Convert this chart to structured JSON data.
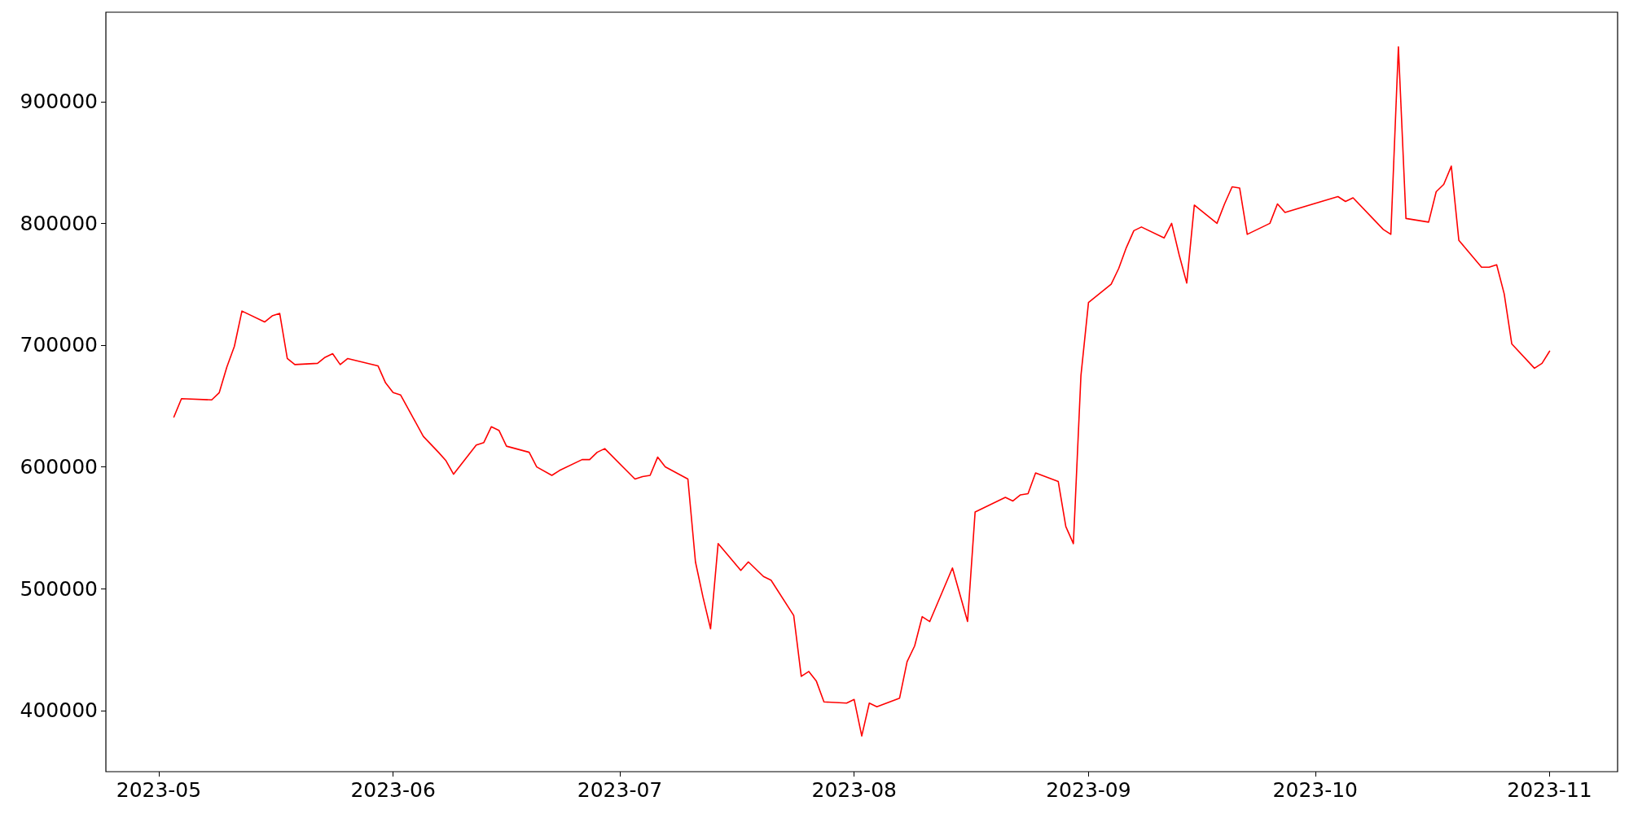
{
  "chart_data": {
    "type": "line",
    "xlim": [
      "2023-04-24",
      "2023-11-10"
    ],
    "ylim": [
      349700,
      973400
    ],
    "xticks": [
      "2023-05",
      "2023-06",
      "2023-07",
      "2023-08",
      "2023-09",
      "2023-10",
      "2023-11"
    ],
    "yticks": [
      400000,
      500000,
      600000,
      700000,
      800000,
      900000
    ],
    "grid": false,
    "marker": "none",
    "line_style": "solid",
    "series": [
      {
        "color": "#ff0000",
        "x": [
          "2023-05-03",
          "2023-05-04",
          "2023-05-08",
          "2023-05-09",
          "2023-05-10",
          "2023-05-11",
          "2023-05-12",
          "2023-05-15",
          "2023-05-16",
          "2023-05-17",
          "2023-05-18",
          "2023-05-19",
          "2023-05-22",
          "2023-05-23",
          "2023-05-24",
          "2023-05-25",
          "2023-05-26",
          "2023-05-30",
          "2023-05-31",
          "2023-06-01",
          "2023-06-02",
          "2023-06-05",
          "2023-06-07",
          "2023-06-08",
          "2023-06-09",
          "2023-06-12",
          "2023-06-13",
          "2023-06-14",
          "2023-06-15",
          "2023-06-16",
          "2023-06-19",
          "2023-06-20",
          "2023-06-22",
          "2023-06-23",
          "2023-06-26",
          "2023-06-27",
          "2023-06-28",
          "2023-06-29",
          "2023-07-03",
          "2023-07-04",
          "2023-07-05",
          "2023-07-06",
          "2023-07-07",
          "2023-07-10",
          "2023-07-11",
          "2023-07-12",
          "2023-07-13",
          "2023-07-14",
          "2023-07-17",
          "2023-07-18",
          "2023-07-19",
          "2023-07-20",
          "2023-07-21",
          "2023-07-24",
          "2023-07-25",
          "2023-07-26",
          "2023-07-27",
          "2023-07-28",
          "2023-07-31",
          "2023-08-01",
          "2023-08-02",
          "2023-08-03",
          "2023-08-04",
          "2023-08-07",
          "2023-08-08",
          "2023-08-09",
          "2023-08-10",
          "2023-08-11",
          "2023-08-14",
          "2023-08-16",
          "2023-08-17",
          "2023-08-18",
          "2023-08-21",
          "2023-08-22",
          "2023-08-23",
          "2023-08-24",
          "2023-08-25",
          "2023-08-28",
          "2023-08-29",
          "2023-08-30",
          "2023-08-31",
          "2023-09-01",
          "2023-09-04",
          "2023-09-05",
          "2023-09-06",
          "2023-09-07",
          "2023-09-08",
          "2023-09-11",
          "2023-09-12",
          "2023-09-13",
          "2023-09-14",
          "2023-09-15",
          "2023-09-18",
          "2023-09-19",
          "2023-09-20",
          "2023-09-21",
          "2023-09-22",
          "2023-09-25",
          "2023-09-26",
          "2023-09-27",
          "2023-10-04",
          "2023-10-05",
          "2023-10-06",
          "2023-10-10",
          "2023-10-11",
          "2023-10-12",
          "2023-10-13",
          "2023-10-16",
          "2023-10-17",
          "2023-10-18",
          "2023-10-19",
          "2023-10-20",
          "2023-10-23",
          "2023-10-24",
          "2023-10-25",
          "2023-10-26",
          "2023-10-27",
          "2023-10-30",
          "2023-10-31",
          "2023-11-01"
        ],
        "values": [
          641000,
          656000,
          655000,
          661000,
          682000,
          699000,
          728000,
          719000,
          724000,
          726000,
          689000,
          684000,
          685000,
          690000,
          693000,
          684000,
          689000,
          683000,
          669000,
          661000,
          659000,
          625000,
          612000,
          605000,
          594000,
          618000,
          620000,
          633000,
          630000,
          617000,
          612000,
          600000,
          593000,
          597000,
          606000,
          606000,
          612000,
          615000,
          590000,
          592000,
          593000,
          608000,
          600000,
          590000,
          522000,
          493000,
          467000,
          537000,
          515000,
          522000,
          516000,
          510000,
          507000,
          478000,
          428000,
          432000,
          424000,
          407000,
          406000,
          409000,
          379000,
          406000,
          403000,
          410000,
          440000,
          453000,
          477000,
          473000,
          517000,
          473000,
          563000,
          566000,
          575000,
          572000,
          577000,
          578000,
          595000,
          588000,
          551000,
          537000,
          675000,
          735000,
          750000,
          763000,
          780000,
          794000,
          797000,
          788000,
          800000,
          774000,
          751000,
          815000,
          800000,
          816000,
          830000,
          829000,
          791000,
          800000,
          816000,
          809000,
          822000,
          818000,
          821000,
          795000,
          791000,
          945000,
          804000,
          801000,
          826000,
          832000,
          847000,
          786000,
          764000,
          764000,
          766000,
          742000,
          701000,
          681000,
          685000,
          695000
        ]
      }
    ]
  }
}
